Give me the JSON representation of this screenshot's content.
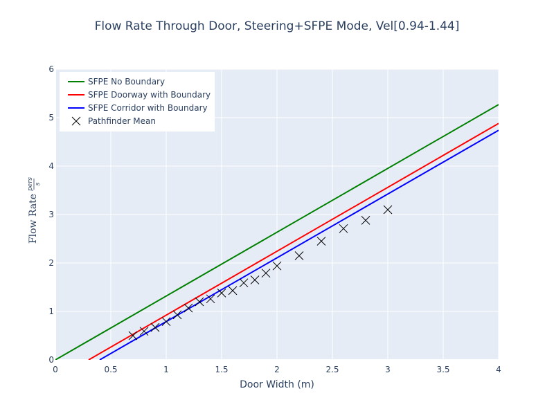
{
  "chart_data": {
    "type": "line",
    "title": "Flow Rate Through Door, Steering+SFPE Mode, Vel[0.94-1.44]",
    "xlabel": "Door Width (m)",
    "ylabel": "Flow Rate",
    "ylabel_fraction_num": "pers",
    "ylabel_fraction_den": "s",
    "xlim": [
      0,
      4
    ],
    "ylim": [
      0,
      6
    ],
    "xticks": [
      "0",
      "0.5",
      "1",
      "1.5",
      "2",
      "2.5",
      "3",
      "3.5",
      "4"
    ],
    "yticks": [
      "0",
      "1",
      "2",
      "3",
      "4",
      "5",
      "6"
    ],
    "grid": true,
    "legend_position": "top-left",
    "series": [
      {
        "name": "SFPE No Boundary",
        "kind": "line",
        "color": "#008000",
        "x": [
          0,
          4
        ],
        "y": [
          0,
          5.27
        ]
      },
      {
        "name": "SFPE Doorway with Boundary",
        "kind": "line",
        "color": "#ff0000",
        "x": [
          0.3,
          4
        ],
        "y": [
          0,
          4.88
        ]
      },
      {
        "name": "SFPE Corridor with Boundary",
        "kind": "line",
        "color": "#0000ff",
        "x": [
          0.4,
          4
        ],
        "y": [
          0,
          4.74
        ]
      },
      {
        "name": "Pathfinder Mean",
        "kind": "markers",
        "color": "#000000",
        "x": [
          0.7,
          0.8,
          0.9,
          1.0,
          1.1,
          1.2,
          1.3,
          1.4,
          1.5,
          1.6,
          1.7,
          1.8,
          1.9,
          2.0,
          2.2,
          2.4,
          2.6,
          2.8,
          3.0
        ],
        "y": [
          0.5,
          0.59,
          0.67,
          0.79,
          0.93,
          1.07,
          1.2,
          1.26,
          1.38,
          1.43,
          1.59,
          1.65,
          1.79,
          1.94,
          2.15,
          2.45,
          2.71,
          2.88,
          3.1
        ]
      }
    ]
  }
}
